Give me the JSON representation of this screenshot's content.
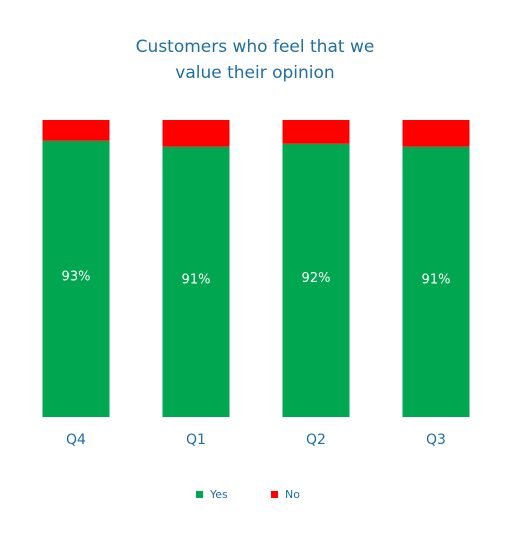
{
  "chart_data": {
    "type": "stacked_bar",
    "title": "Customers who feel that we value their opinion",
    "categories": [
      "Q4",
      "Q1",
      "Q2",
      "Q3"
    ],
    "series": [
      {
        "name": "Yes",
        "color": "#00a650",
        "values": [
          93,
          91,
          92,
          91
        ],
        "value_labels": [
          "93%",
          "91%",
          "92%",
          "91%"
        ]
      },
      {
        "name": "No",
        "color": "#ff0000",
        "values": [
          7,
          9,
          8,
          9
        ]
      }
    ],
    "ylim": [
      0,
      100
    ],
    "legend": "bottom"
  }
}
